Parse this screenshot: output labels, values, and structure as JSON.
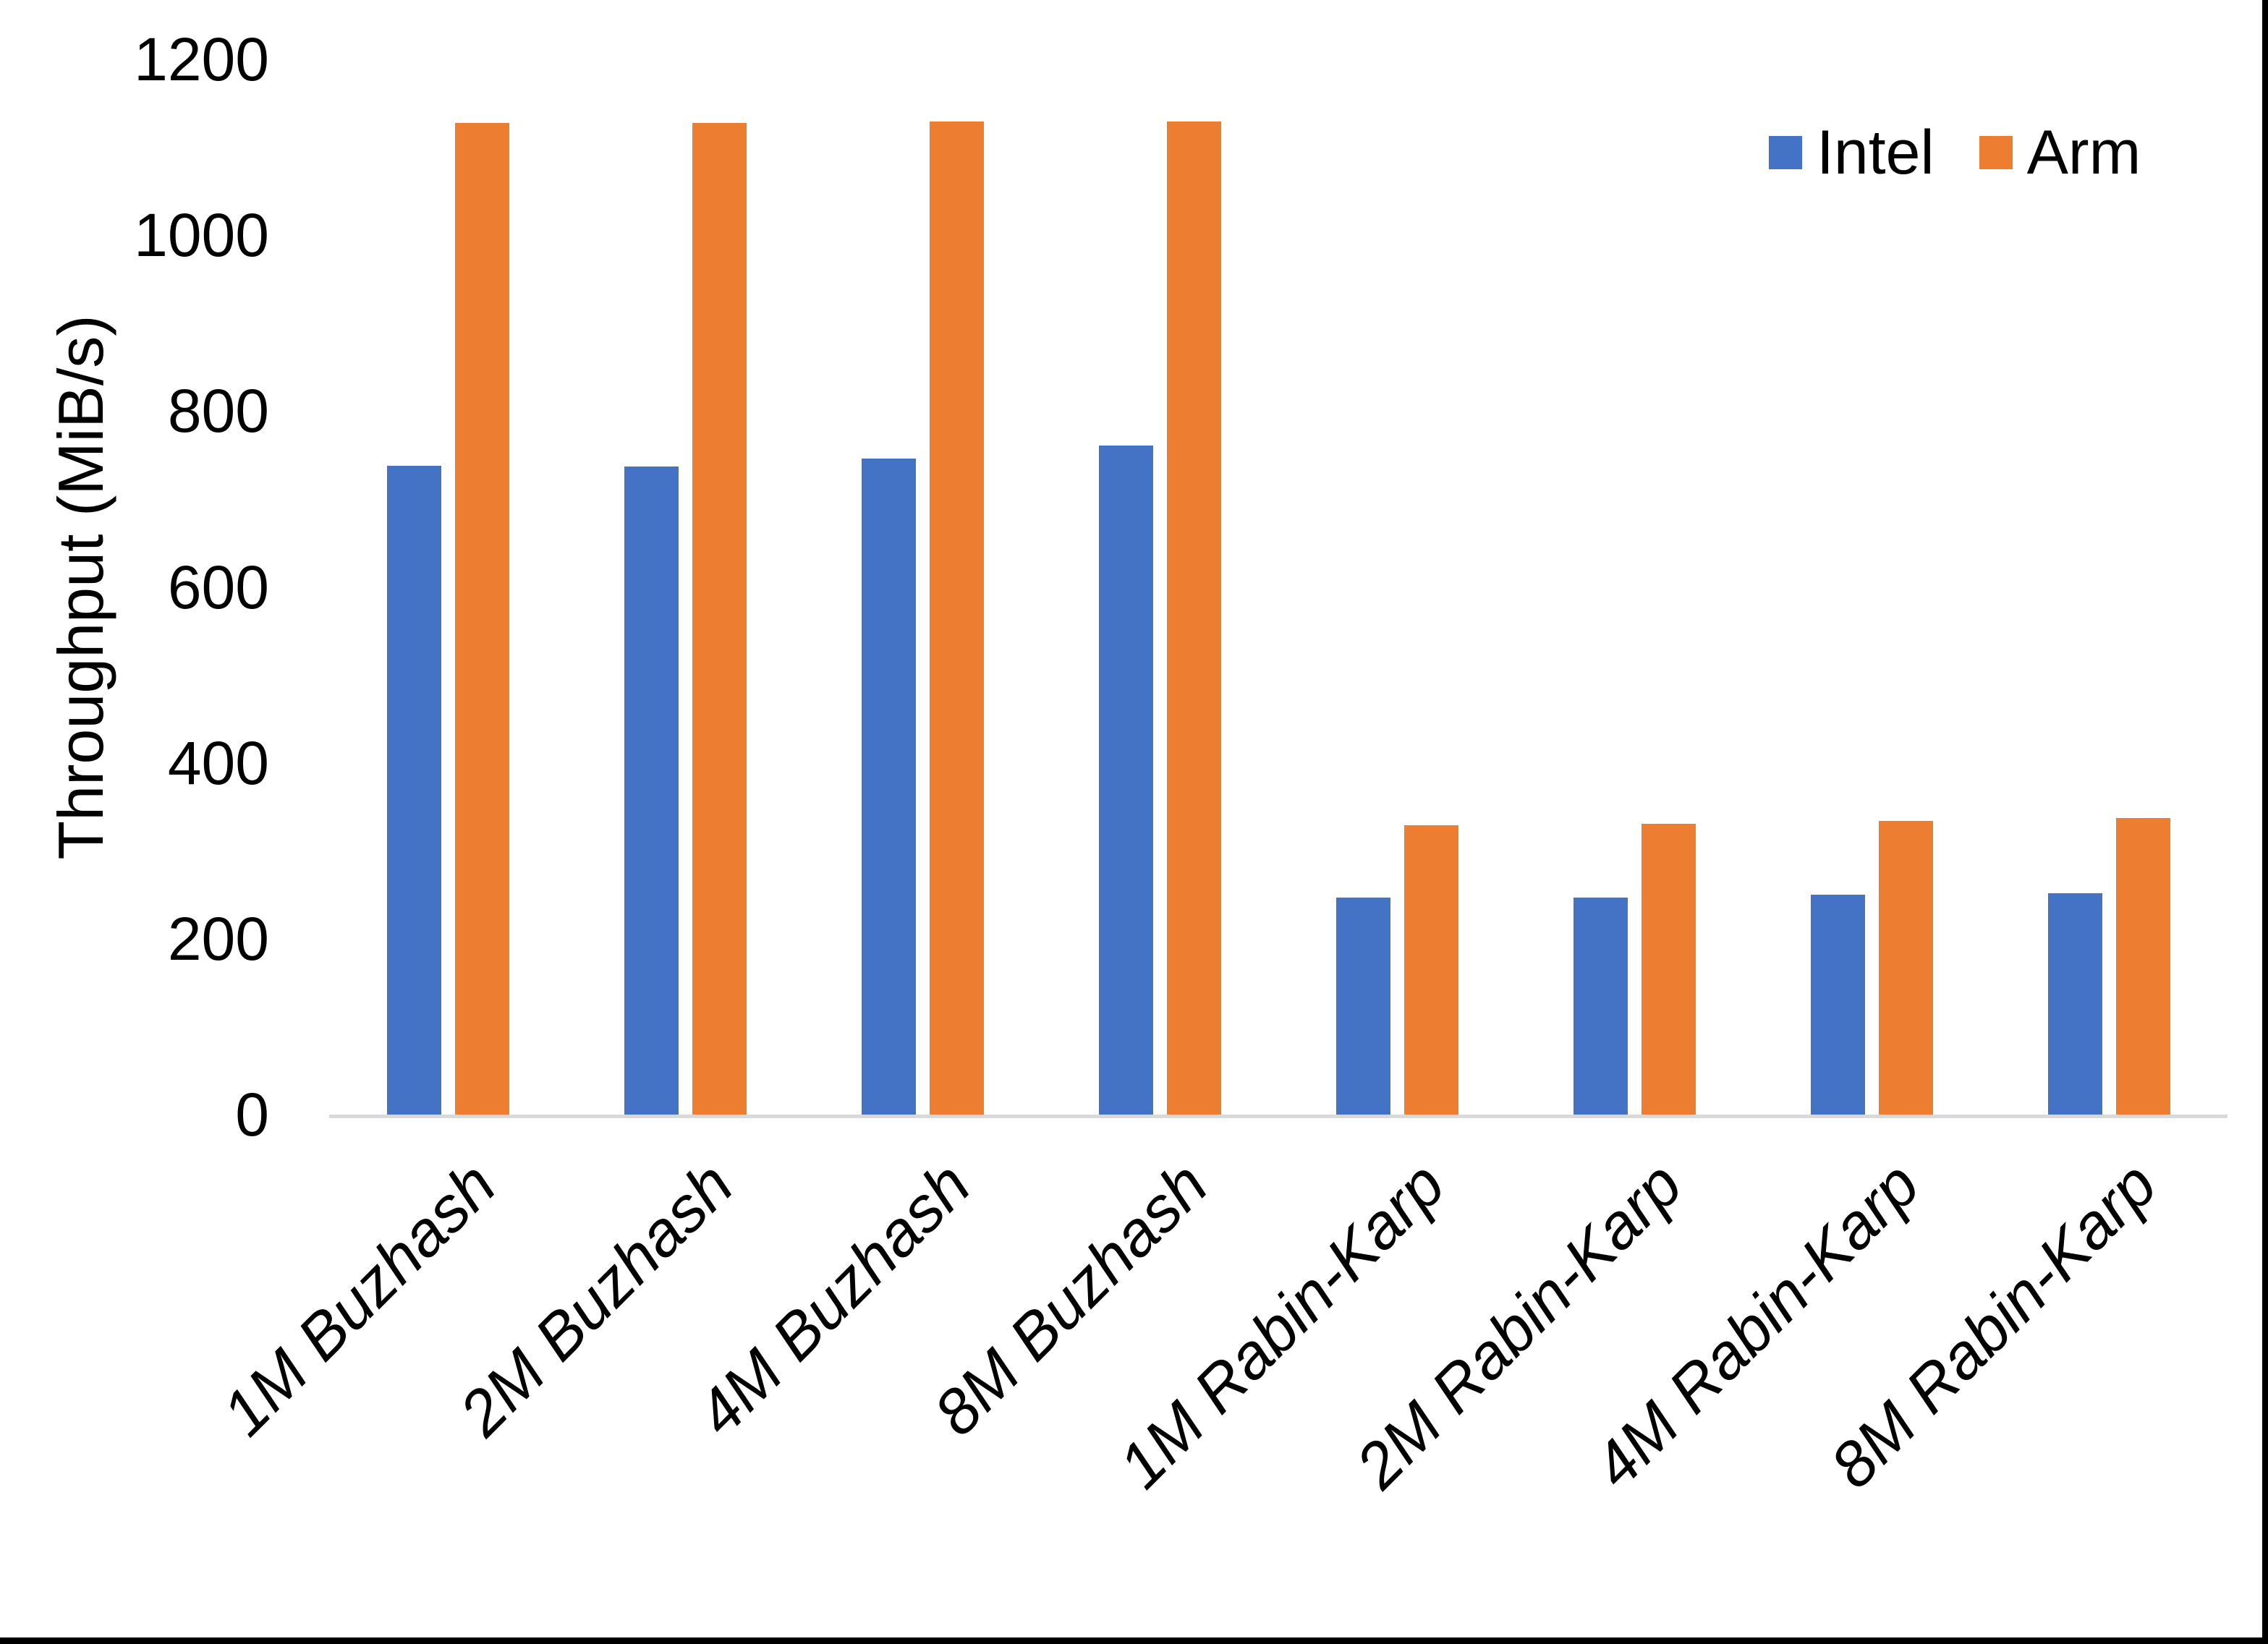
{
  "chart_data": {
    "type": "bar",
    "title": "",
    "xlabel": "",
    "ylabel": "Throughput (MiB/s)",
    "ylim": [
      0,
      1200
    ],
    "y_ticks": [
      0,
      200,
      400,
      600,
      800,
      1000,
      1200
    ],
    "grid": false,
    "legend_position": "top-right",
    "categories": [
      "1M Buzhash",
      "2M Buzhash",
      "4M Buzhash",
      "8M Buzhash",
      "1M Rabin-Karp",
      "2M Rabin-Karp",
      "4M Rabin-Karp",
      "8M Rabin-Karp"
    ],
    "series": [
      {
        "name": "Intel",
        "color": "#4472C4",
        "values": [
          738,
          737,
          746,
          761,
          247,
          247,
          250,
          252
        ]
      },
      {
        "name": "Arm",
        "color": "#ED7D31",
        "values": [
          1128,
          1128,
          1129,
          1129,
          329,
          331,
          334,
          337
        ]
      }
    ],
    "axis_line_color": "#D9D9D9",
    "text_color": "#000000"
  }
}
